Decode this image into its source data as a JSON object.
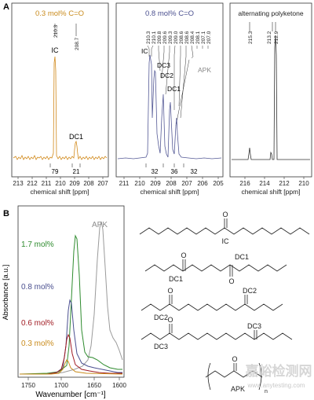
{
  "figure": {
    "panel_a": {
      "letter": "A",
      "sub1": {
        "title": "0.3 mol% C=O",
        "title_color": "#c98b1c",
        "trace_color": "#d1891a",
        "peak_labels": [
          "210.3",
          "208.7"
        ],
        "assign": [
          "IC",
          "DC1"
        ],
        "integrals": [
          "79",
          "21"
        ],
        "ticks": [
          "213",
          "212",
          "211",
          "210",
          "209",
          "208",
          "207"
        ],
        "xlabel": "chemical shift [ppm]"
      },
      "sub2": {
        "title": "0.8 mol% C=O",
        "title_color": "#4a4f8f",
        "trace_color": "#555a96",
        "peak_labels": [
          "210.3",
          "210.1",
          "209.8",
          "209.6",
          "209.3",
          "209.0",
          "208.6",
          "208.6",
          "208.4",
          "208.1",
          "207.1",
          "207.0"
        ],
        "assign": [
          "IC",
          "DC3",
          "DC2",
          "DC1",
          "APK"
        ],
        "integrals": [
          "32",
          "36",
          "32"
        ],
        "ticks": [
          "211",
          "210",
          "209",
          "208",
          "207",
          "206",
          "205"
        ],
        "xlabel": "chemical shift [ppm]"
      },
      "sub3": {
        "title": "alternating polyketone",
        "peak_labels": [
          "215.3",
          "213.2",
          "212.9"
        ],
        "ticks": [
          "216",
          "214",
          "212",
          "210"
        ],
        "xlabel": "chemical shift [ppm]"
      }
    },
    "panel_b": {
      "letter": "B",
      "ylabel": "Absorbance [a.u.]",
      "xlabel": "Wavenumber [cm⁻¹]",
      "xticks": [
        "1750",
        "1700",
        "1650",
        "1600"
      ],
      "legend": [
        {
          "label": "1.7 mol%",
          "color": "#2e8b2e"
        },
        {
          "label": "APK",
          "color": "#8c8c8c"
        },
        {
          "label": "0.8 mol%",
          "color": "#4a4f8f"
        },
        {
          "label": "0.6 mol%",
          "color": "#a11c24"
        },
        {
          "label": "0.3 mol%",
          "color": "#c98b1c"
        }
      ]
    },
    "structures": {
      "labels": [
        "IC",
        "DC1",
        "DC1",
        "DC2",
        "DC2",
        "DC3",
        "DC3",
        "APK"
      ],
      "o_label": "O",
      "n_label": "n"
    },
    "watermark": "嘉峪检测网",
    "watermark_url": "www.anytesting.com"
  }
}
